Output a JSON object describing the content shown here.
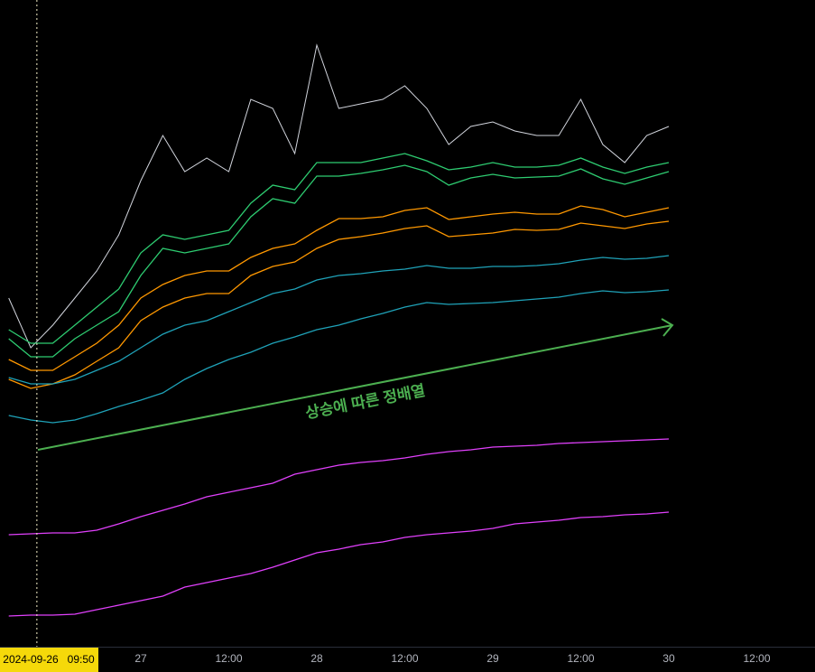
{
  "chart_data": {
    "type": "line",
    "annotation": "상승에 따른 정배열",
    "crosshair": {
      "value": 9.83,
      "label": "2024-09-26   09:50"
    },
    "x": [
      6,
      9,
      12,
      15,
      18,
      21,
      24,
      27,
      30,
      33,
      36,
      39,
      42,
      45,
      48,
      51,
      54,
      57,
      60,
      63,
      66,
      69,
      72,
      75,
      78,
      81,
      84,
      87,
      90,
      93,
      96
    ],
    "xlim": [
      4.8,
      115.94
    ],
    "xticks": [
      {
        "value": 24,
        "label": "27"
      },
      {
        "value": 36,
        "label": "12:00"
      },
      {
        "value": 48,
        "label": "28"
      },
      {
        "value": 60,
        "label": "12:00"
      },
      {
        "value": 72,
        "label": "29"
      },
      {
        "value": 84,
        "label": "12:00"
      },
      {
        "value": 96,
        "label": "30"
      },
      {
        "value": 108,
        "label": "12:00"
      }
    ],
    "ylim": [
      0,
      716
    ],
    "series": [
      {
        "color": "#d1d4dc",
        "values": [
          386,
          331,
          356,
          386,
          416,
          456,
          516,
          566,
          526,
          541,
          526,
          606,
          596,
          546,
          666,
          596,
          601,
          606,
          621,
          596,
          556,
          576,
          581,
          571,
          566,
          566,
          606,
          556,
          536,
          566,
          576
        ]
      },
      {
        "color": "#2ecc71",
        "values": [
          351,
          336,
          336,
          356,
          376,
          396,
          436,
          456,
          451,
          456,
          461,
          491,
          511,
          506,
          536,
          536,
          536,
          541,
          546,
          538,
          528,
          531,
          536,
          531,
          531,
          533,
          541,
          531,
          524,
          531,
          536
        ]
      },
      {
        "color": "#2ecc71",
        "values": [
          341,
          321,
          321,
          341,
          356,
          371,
          411,
          441,
          436,
          441,
          446,
          476,
          496,
          491,
          521,
          521,
          524,
          528,
          533,
          526,
          511,
          519,
          523,
          519,
          520,
          521,
          529,
          518,
          512,
          519,
          526
        ]
      },
      {
        "color": "#ff9800",
        "values": [
          318,
          306,
          306,
          321,
          336,
          356,
          386,
          401,
          411,
          416,
          416,
          431,
          441,
          446,
          461,
          474,
          474,
          476,
          483,
          486,
          473,
          476,
          479,
          481,
          479,
          479,
          488,
          484,
          476,
          481,
          486
        ]
      },
      {
        "color": "#ff9800",
        "values": [
          296,
          286,
          291,
          301,
          316,
          331,
          361,
          376,
          386,
          391,
          391,
          411,
          421,
          426,
          441,
          451,
          454,
          458,
          463,
          466,
          454,
          456,
          458,
          462,
          461,
          462,
          469,
          466,
          463,
          468,
          471
        ]
      },
      {
        "color": "#1fa2b8",
        "values": [
          298,
          291,
          291,
          296,
          306,
          316,
          331,
          346,
          356,
          361,
          371,
          381,
          391,
          396,
          406,
          411,
          413,
          416,
          418,
          422,
          419,
          419,
          421,
          421,
          422,
          424,
          428,
          431,
          429,
          430,
          433
        ]
      },
      {
        "color": "#1fa2b8",
        "values": [
          256,
          251,
          248,
          251,
          258,
          266,
          273,
          281,
          296,
          308,
          318,
          326,
          336,
          343,
          351,
          356,
          363,
          369,
          376,
          381,
          379,
          380,
          381,
          383,
          385,
          387,
          391,
          394,
          392,
          393,
          395
        ]
      },
      {
        "color": "#e040fb",
        "values": [
          124,
          125,
          126,
          126,
          129,
          136,
          144,
          151,
          158,
          166,
          171,
          176,
          181,
          191,
          196,
          201,
          204,
          206,
          209,
          213,
          216,
          218,
          221,
          222,
          223,
          225,
          226,
          227,
          228,
          229,
          230
        ]
      },
      {
        "color": "#e040fb",
        "values": [
          34,
          35,
          35,
          36,
          41,
          46,
          51,
          56,
          66,
          71,
          76,
          81,
          88,
          96,
          104,
          108,
          113,
          116,
          121,
          124,
          126,
          128,
          131,
          136,
          138,
          140,
          143,
          144,
          146,
          147,
          149
        ]
      }
    ]
  }
}
